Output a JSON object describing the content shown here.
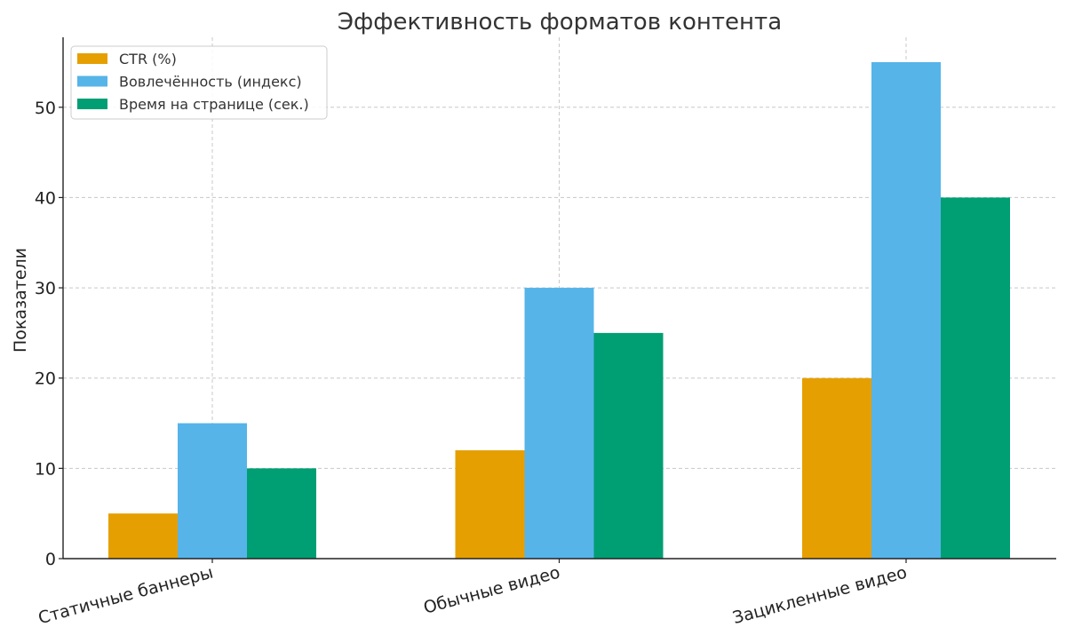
{
  "chart_data": {
    "type": "bar",
    "title": "Эффективность форматов контента",
    "xlabel": "",
    "ylabel": "Показатели",
    "categories": [
      "Статичные баннеры",
      "Обычные видео",
      "Зацикленные видео"
    ],
    "series": [
      {
        "name": "CTR (%)",
        "color": "#E69F00",
        "values": [
          5,
          12,
          20
        ]
      },
      {
        "name": "Вовлечённость (индекс)",
        "color": "#56B4E9",
        "values": [
          15,
          30,
          55
        ]
      },
      {
        "name": "Время на странице (сек.)",
        "color": "#009E73",
        "values": [
          10,
          25,
          40
        ]
      }
    ],
    "ylim": [
      0,
      57.75
    ],
    "yticks": [
      0,
      10,
      20,
      30,
      40,
      50
    ],
    "grid": true,
    "legend_position": "top-left"
  }
}
